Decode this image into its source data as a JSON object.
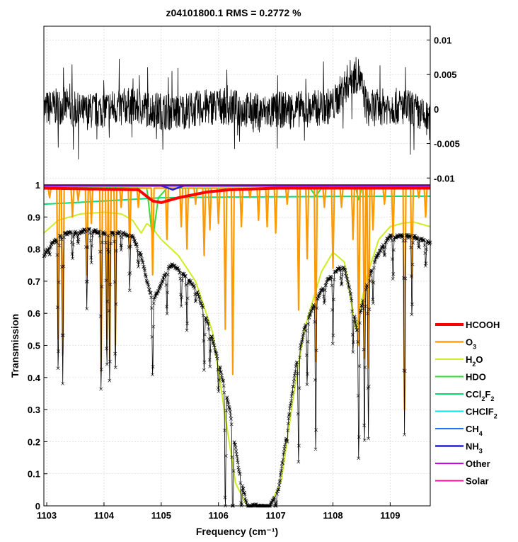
{
  "chart_data": [
    {
      "type": "line",
      "title": "z04101800.1    RMS = 0.2772 %",
      "xlim": [
        1102.95,
        1109.7
      ],
      "ylim": [
        -0.011,
        0.012
      ],
      "yticks": [
        "0.01",
        "0.005",
        "0",
        "-0.005",
        "-0.01"
      ],
      "ytick_values": [
        0.01,
        0.005,
        0,
        -0.005,
        -0.01
      ],
      "ytick_side": "right",
      "grid": true,
      "series": [
        {
          "role": "residual",
          "color": "#000000",
          "x": [
            1102.95,
            1103.3,
            1103.6,
            1104.0,
            1104.4,
            1104.8,
            1105.2,
            1105.6,
            1106.0,
            1106.4,
            1106.8,
            1107.2,
            1107.6,
            1108.0,
            1108.3,
            1108.45,
            1108.6,
            1109.0,
            1109.4,
            1109.7
          ],
          "y": [
            0.0,
            0.0005,
            -0.0005,
            0.0,
            0.0005,
            0.0,
            -0.0005,
            0.0,
            0.0005,
            0.0,
            -0.0005,
            0.0,
            0.0,
            0.0005,
            0.0045,
            0.005,
            0.0,
            0.0005,
            0.0,
            -0.002
          ],
          "noise_amplitude": 0.0027
        }
      ]
    },
    {
      "type": "line",
      "xlabel": "Frequency (cm⁻¹)",
      "ylabel": "Transmission",
      "xlim": [
        1102.95,
        1109.7
      ],
      "ylim": [
        0,
        1.0
      ],
      "xticks": [
        "1103",
        "1104",
        "1105",
        "1106",
        "1107",
        "1108",
        "1109"
      ],
      "xtick_values": [
        1103,
        1104,
        1105,
        1106,
        1107,
        1108,
        1109
      ],
      "yticks": [
        "0",
        "0.1",
        "0.2",
        "0.3",
        "0.4",
        "0.5",
        "0.6",
        "0.7",
        "0.8",
        "0.9",
        "1"
      ],
      "ytick_values": [
        0,
        0.1,
        0.2,
        0.3,
        0.4,
        0.5,
        0.6,
        0.7,
        0.8,
        0.9,
        1.0
      ],
      "grid": true,
      "legend_position": "right",
      "series": [
        {
          "name": "HCOOH",
          "color": "#ff0000",
          "width": 4,
          "x": [
            1102.95,
            1104.6,
            1104.85,
            1105.0,
            1105.3,
            1105.8,
            1106.2,
            1107.0,
            1109.7
          ],
          "y": [
            0.99,
            0.985,
            0.95,
            0.945,
            0.96,
            0.978,
            0.985,
            0.99,
            0.99
          ]
        },
        {
          "name": "O3",
          "color": "#ff9900",
          "width": 2.2,
          "x": [
            1102.95,
            1109.7
          ],
          "y": [
            0.99,
            0.99
          ],
          "lines": [
            [
              1103.05,
              0.96
            ],
            [
              1103.2,
              0.52
            ],
            [
              1103.28,
              0.47
            ],
            [
              1103.45,
              0.9
            ],
            [
              1103.55,
              0.95
            ],
            [
              1103.7,
              0.72
            ],
            [
              1103.78,
              0.88
            ],
            [
              1103.95,
              0.42
            ],
            [
              1104.05,
              0.52
            ],
            [
              1104.1,
              0.46
            ],
            [
              1104.2,
              0.5
            ],
            [
              1104.3,
              0.93
            ],
            [
              1104.45,
              0.8
            ],
            [
              1104.6,
              0.93
            ],
            [
              1104.85,
              0.72
            ],
            [
              1105.1,
              0.83
            ],
            [
              1105.35,
              0.87
            ],
            [
              1105.45,
              0.8
            ],
            [
              1105.6,
              0.94
            ],
            [
              1105.75,
              0.78
            ],
            [
              1105.85,
              0.86
            ],
            [
              1106.0,
              0.88
            ],
            [
              1106.12,
              0.55
            ],
            [
              1106.25,
              0.41
            ],
            [
              1106.4,
              0.87
            ],
            [
              1106.55,
              0.96
            ],
            [
              1106.7,
              0.89
            ],
            [
              1106.85,
              0.87
            ],
            [
              1107.0,
              0.85
            ],
            [
              1107.2,
              0.94
            ],
            [
              1107.4,
              0.61
            ],
            [
              1107.55,
              0.77
            ],
            [
              1107.7,
              0.45
            ],
            [
              1107.85,
              0.93
            ],
            [
              1108.0,
              0.74
            ],
            [
              1108.15,
              0.93
            ],
            [
              1108.35,
              0.83
            ],
            [
              1108.45,
              0.5
            ],
            [
              1108.55,
              0.46
            ],
            [
              1108.62,
              0.43
            ],
            [
              1108.7,
              0.86
            ],
            [
              1108.9,
              0.94
            ],
            [
              1109.05,
              0.84
            ],
            [
              1109.25,
              0.3
            ],
            [
              1109.38,
              0.71
            ],
            [
              1109.5,
              0.96
            ],
            [
              1109.62,
              0.9
            ]
          ]
        },
        {
          "name": "H2O",
          "color": "#ccee22",
          "width": 2,
          "x": [
            1102.95,
            1103.2,
            1103.6,
            1104.0,
            1104.3,
            1104.5,
            1104.65,
            1104.75,
            1104.85,
            1105.0,
            1105.3,
            1105.6,
            1105.9,
            1106.1,
            1106.3,
            1106.5,
            1106.7,
            1106.9,
            1107.1,
            1107.3,
            1107.5,
            1107.8,
            1108.0,
            1108.2,
            1108.4,
            1108.6,
            1108.8,
            1109.0,
            1109.2,
            1109.4,
            1109.7
          ],
          "y": [
            0.85,
            0.89,
            0.91,
            0.915,
            0.91,
            0.89,
            0.85,
            0.88,
            0.865,
            0.83,
            0.78,
            0.7,
            0.54,
            0.3,
            0.07,
            0.0,
            0.0,
            0.0,
            0.08,
            0.33,
            0.55,
            0.73,
            0.79,
            0.76,
            0.55,
            0.72,
            0.83,
            0.87,
            0.88,
            0.885,
            0.87
          ]
        },
        {
          "name": "HDO",
          "color": "#33dd33",
          "width": 2,
          "x": [
            1102.95,
            1104.75,
            1104.85,
            1104.95,
            1105.1,
            1107.6,
            1107.7,
            1107.8,
            1108.4,
            1108.45,
            1108.5,
            1109.7
          ],
          "y": [
            0.995,
            0.99,
            0.83,
            0.96,
            0.99,
            0.99,
            0.965,
            0.99,
            0.99,
            0.95,
            0.99,
            0.995
          ]
        },
        {
          "name": "CCl2F2",
          "color": "#00e070",
          "width": 2,
          "x": [
            1102.95,
            1103.5,
            1104.0,
            1105.0,
            1106.0,
            1107.0,
            1108.0,
            1109.7
          ],
          "y": [
            0.94,
            0.945,
            0.95,
            0.96,
            0.962,
            0.963,
            0.964,
            0.965
          ]
        },
        {
          "name": "CHClF2",
          "color": "#00e6e6",
          "width": 1.5,
          "x": [
            1102.95,
            1109.7
          ],
          "y": [
            0.995,
            0.995
          ]
        },
        {
          "name": "CH4",
          "color": "#1a75ff",
          "width": 1.5,
          "x": [
            1102.95,
            1109.7
          ],
          "y": [
            0.997,
            0.997
          ]
        },
        {
          "name": "NH3",
          "color": "#2222cc",
          "width": 2.5,
          "x": [
            1102.95,
            1105.0,
            1105.2,
            1105.4,
            1109.7
          ],
          "y": [
            0.998,
            0.998,
            0.985,
            0.998,
            0.998
          ]
        },
        {
          "name": "Other",
          "color": "#cc00ee",
          "width": 2,
          "x": [
            1102.95,
            1109.7
          ],
          "y": [
            0.999,
            0.999
          ]
        },
        {
          "name": "Solar",
          "color": "#ee1199",
          "width": 1.5,
          "x": [
            1102.95,
            1109.7
          ],
          "y": [
            1.0,
            1.0
          ]
        },
        {
          "role": "observed",
          "color": "#000000",
          "width": 1,
          "marker": "x",
          "x": [
            1102.95,
            1103.1,
            1103.3,
            1103.5,
            1103.7,
            1104.0,
            1104.3,
            1104.5,
            1104.65,
            1104.75,
            1104.85,
            1105.0,
            1105.1,
            1105.2,
            1105.4,
            1105.6,
            1105.8,
            1106.0,
            1106.2,
            1106.35,
            1106.5,
            1106.7,
            1106.9,
            1107.05,
            1107.2,
            1107.35,
            1107.5,
            1107.7,
            1107.9,
            1108.1,
            1108.2,
            1108.3,
            1108.42,
            1108.5,
            1108.6,
            1108.75,
            1108.9,
            1109.0,
            1109.2,
            1109.4,
            1109.7
          ],
          "y": [
            0.78,
            0.82,
            0.85,
            0.85,
            0.86,
            0.85,
            0.85,
            0.84,
            0.78,
            0.7,
            0.64,
            0.69,
            0.74,
            0.75,
            0.72,
            0.68,
            0.58,
            0.45,
            0.3,
            0.12,
            0.0,
            0.0,
            0.0,
            0.05,
            0.24,
            0.43,
            0.55,
            0.64,
            0.7,
            0.74,
            0.74,
            0.67,
            0.55,
            0.62,
            0.7,
            0.77,
            0.82,
            0.84,
            0.84,
            0.84,
            0.82
          ]
        }
      ],
      "legend_labels": [
        {
          "base": "HCOOH",
          "sub": []
        },
        {
          "base": "O",
          "sub": [
            "3"
          ]
        },
        {
          "base": "H",
          "sub": [
            "2"
          ],
          "tail": "O"
        },
        {
          "base": "HDO",
          "sub": []
        },
        {
          "base": "CCl",
          "sub": [
            "2"
          ],
          "tail": "F",
          "sub2": "2"
        },
        {
          "base": "CHClF",
          "sub": [
            "2"
          ]
        },
        {
          "base": "CH",
          "sub": [
            "4"
          ]
        },
        {
          "base": "NH",
          "sub": [
            "3"
          ]
        },
        {
          "base": "Other",
          "sub": []
        },
        {
          "base": "Solar",
          "sub": []
        }
      ]
    }
  ]
}
